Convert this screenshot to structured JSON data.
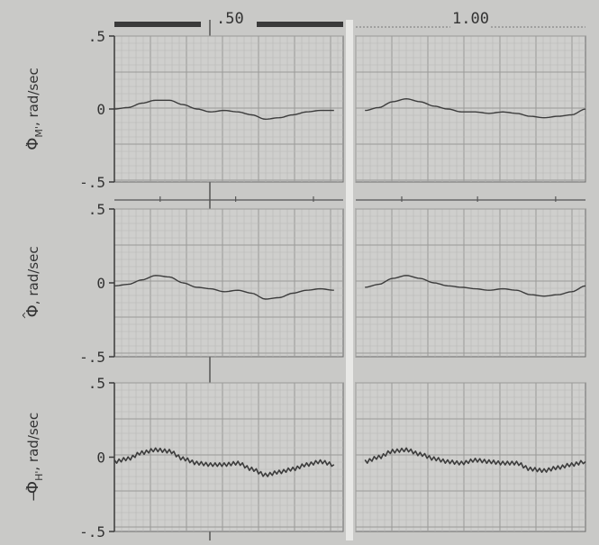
{
  "chart_data": {
    "type": "line",
    "header": {
      "left_label": ".50",
      "right_label": "1.00"
    },
    "panels": [
      {
        "ylabel": "Φ̇M', rad/sec",
        "ylabel_symbol": "Φ",
        "ylabel_accent": "·",
        "ylabel_subscript": "M'",
        "ylabel_units": "rad/sec",
        "ylim": [
          -0.5,
          0.5
        ],
        "yticks": [
          ".5",
          "0",
          "-.5"
        ],
        "series": [
          {
            "segments": [
              {
                "x": [
                  0.0,
                  0.03,
                  0.06,
                  0.09,
                  0.12,
                  0.15,
                  0.18,
                  0.21,
                  0.24,
                  0.27,
                  0.3,
                  0.33,
                  0.36,
                  0.39,
                  0.42,
                  0.45,
                  0.48
                ],
                "y": [
                  0.0,
                  0.01,
                  0.04,
                  0.06,
                  0.06,
                  0.03,
                  0.0,
                  -0.02,
                  -0.01,
                  -0.02,
                  -0.04,
                  -0.07,
                  -0.06,
                  -0.04,
                  -0.02,
                  -0.01,
                  -0.01
                ]
              },
              {
                "x": [
                  0.52,
                  0.55,
                  0.58,
                  0.61,
                  0.64,
                  0.67,
                  0.7,
                  0.73,
                  0.76,
                  0.79,
                  0.82,
                  0.85,
                  0.88,
                  0.91,
                  0.94,
                  0.97,
                  1.0
                ],
                "y": [
                  -0.01,
                  0.01,
                  0.05,
                  0.07,
                  0.05,
                  0.02,
                  0.0,
                  -0.02,
                  -0.02,
                  -0.03,
                  -0.02,
                  -0.03,
                  -0.05,
                  -0.06,
                  -0.05,
                  -0.04,
                  0.0
                ]
              }
            ]
          }
        ]
      },
      {
        "ylabel": "Φ̂, rad/sec",
        "ylabel_symbol": "Φ",
        "ylabel_accent": "^",
        "ylabel_subscript": "",
        "ylabel_units": "rad/sec",
        "ylim": [
          -0.5,
          0.5
        ],
        "yticks": [
          ".5",
          "0",
          "-.5"
        ],
        "series": [
          {
            "segments": [
              {
                "x": [
                  0.0,
                  0.03,
                  0.06,
                  0.09,
                  0.12,
                  0.15,
                  0.18,
                  0.21,
                  0.24,
                  0.27,
                  0.3,
                  0.33,
                  0.36,
                  0.39,
                  0.42,
                  0.45,
                  0.48
                ],
                "y": [
                  -0.02,
                  -0.01,
                  0.02,
                  0.05,
                  0.04,
                  0.0,
                  -0.03,
                  -0.04,
                  -0.06,
                  -0.05,
                  -0.07,
                  -0.11,
                  -0.1,
                  -0.07,
                  -0.05,
                  -0.04,
                  -0.05
                ]
              },
              {
                "x": [
                  0.52,
                  0.55,
                  0.58,
                  0.61,
                  0.64,
                  0.67,
                  0.7,
                  0.73,
                  0.76,
                  0.79,
                  0.82,
                  0.85,
                  0.88,
                  0.91,
                  0.94,
                  0.97,
                  1.0
                ],
                "y": [
                  -0.03,
                  -0.01,
                  0.03,
                  0.05,
                  0.03,
                  0.0,
                  -0.02,
                  -0.03,
                  -0.04,
                  -0.05,
                  -0.04,
                  -0.05,
                  -0.08,
                  -0.09,
                  -0.08,
                  -0.06,
                  -0.02
                ]
              }
            ]
          }
        ]
      },
      {
        "ylabel": "−Φ̇H', rad/sec",
        "ylabel_symbol": "Φ",
        "ylabel_accent": "·",
        "ylabel_subscript": "H'",
        "ylabel_prefix": "−",
        "ylabel_units": "rad/sec",
        "ylim": [
          -0.5,
          0.5
        ],
        "yticks": [
          ".5",
          "0",
          "-.5"
        ],
        "series": [
          {
            "noisy": true,
            "segments": [
              {
                "x": [
                  0.0,
                  0.03,
                  0.06,
                  0.09,
                  0.12,
                  0.15,
                  0.18,
                  0.21,
                  0.24,
                  0.27,
                  0.3,
                  0.33,
                  0.36,
                  0.39,
                  0.42,
                  0.45,
                  0.48
                ],
                "y": [
                  -0.03,
                  -0.01,
                  0.03,
                  0.05,
                  0.04,
                  -0.01,
                  -0.04,
                  -0.05,
                  -0.05,
                  -0.04,
                  -0.08,
                  -0.12,
                  -0.1,
                  -0.08,
                  -0.05,
                  -0.03,
                  -0.05
                ]
              },
              {
                "x": [
                  0.52,
                  0.55,
                  0.58,
                  0.61,
                  0.64,
                  0.67,
                  0.7,
                  0.73,
                  0.76,
                  0.79,
                  0.82,
                  0.85,
                  0.88,
                  0.91,
                  0.94,
                  0.97,
                  1.0
                ],
                "y": [
                  -0.03,
                  0.0,
                  0.04,
                  0.05,
                  0.02,
                  -0.01,
                  -0.03,
                  -0.04,
                  -0.02,
                  -0.03,
                  -0.04,
                  -0.04,
                  -0.08,
                  -0.09,
                  -0.07,
                  -0.05,
                  -0.03
                ]
              }
            ]
          }
        ]
      }
    ]
  }
}
